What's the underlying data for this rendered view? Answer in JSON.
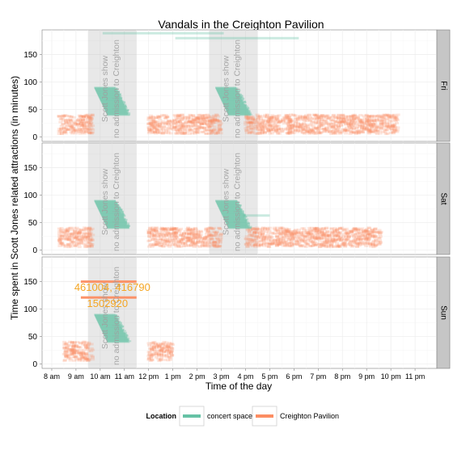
{
  "chart_data": {
    "type": "scatter",
    "title": "Vandals in the Creighton Pavilion",
    "xlabel": "Time of the day",
    "ylabel": "Time spent in Scott Jones related attractions (in minutes)",
    "x_ticks": [
      "8 am",
      "9 am",
      "10 am",
      "11 am",
      "12 pm",
      "1 pm",
      "2 pm",
      "3 pm",
      "4 pm",
      "5 pm",
      "6 pm",
      "7 pm",
      "8 pm",
      "9 pm",
      "10 pm",
      "11 pm"
    ],
    "y_ticks": [
      "0",
      "50",
      "100",
      "150"
    ],
    "ylim": [
      -8,
      195
    ],
    "xlim": [
      7.6,
      11.9
    ],
    "legend": {
      "title": "Location",
      "position": "bottom",
      "items": [
        {
          "name": "concert space",
          "color": "#66c2a5"
        },
        {
          "name": "Creighton Pavilion",
          "color": "#fc8d62"
        }
      ]
    },
    "colors": {
      "concert": "#66c2a5",
      "pavilion": "#fc8d62",
      "show_band": "#bdbdbd",
      "strip": "#c6c6c6",
      "panel_bg": "#ffffff",
      "grid": "#ececec",
      "annotation": "#f5a623"
    },
    "show_label_line1": "Scott Jones show",
    "show_label_line2": "no admission to Creighton",
    "panels": [
      {
        "day": "Fri",
        "show_windows": [
          [
            9.5,
            11.5
          ],
          [
            14.5,
            16.5
          ]
        ],
        "concert_wedges": [
          {
            "x0": 9.75,
            "x1": 11.3,
            "y": [
              40,
              90
            ]
          },
          {
            "x0": 14.75,
            "x1": 16.3,
            "y": [
              40,
              90
            ]
          }
        ],
        "pavilion_clusters": [
          {
            "x0": 8.3,
            "x1": 9.7,
            "y": [
              5,
              40
            ]
          },
          {
            "x0": 12.0,
            "x1": 15.0,
            "y": [
              5,
              40
            ]
          },
          {
            "x0": 16.0,
            "x1": 22.3,
            "y": [
              5,
              40
            ]
          }
        ],
        "concert_segments": [
          {
            "x0": 10.1,
            "x1": 15.1,
            "y": 189
          },
          {
            "x0": 13.1,
            "x1": 18.2,
            "y": 180
          }
        ],
        "pavilion_segments": [],
        "annotations": []
      },
      {
        "day": "Sat",
        "show_windows": [
          [
            9.5,
            11.5
          ],
          [
            14.5,
            16.5
          ]
        ],
        "concert_wedges": [
          {
            "x0": 9.75,
            "x1": 11.3,
            "y": [
              40,
              90
            ]
          },
          {
            "x0": 14.75,
            "x1": 16.3,
            "y": [
              40,
              90
            ]
          }
        ],
        "pavilion_clusters": [
          {
            "x0": 8.3,
            "x1": 9.7,
            "y": [
              5,
              40
            ]
          },
          {
            "x0": 12.0,
            "x1": 15.0,
            "y": [
              5,
              40
            ]
          },
          {
            "x0": 16.0,
            "x1": 21.6,
            "y": [
              5,
              40
            ]
          }
        ],
        "concert_segments": [
          {
            "x0": 15.9,
            "x1": 17.0,
            "y": 63
          }
        ],
        "pavilion_segments": [],
        "annotations": []
      },
      {
        "day": "Sun",
        "show_windows": [
          [
            9.5,
            11.5
          ]
        ],
        "concert_wedges": [
          {
            "x0": 9.75,
            "x1": 11.3,
            "y": [
              40,
              90
            ]
          }
        ],
        "pavilion_clusters": [
          {
            "x0": 8.5,
            "x1": 9.7,
            "y": [
              5,
              40
            ]
          },
          {
            "x0": 12.0,
            "x1": 13.0,
            "y": [
              5,
              40
            ]
          }
        ],
        "concert_segments": [],
        "pavilion_segments": [
          {
            "x0": 9.2,
            "x1": 11.5,
            "y": 150
          },
          {
            "x0": 9.2,
            "x1": 11.5,
            "y": 121
          }
        ],
        "annotations": [
          {
            "text": "461004, 416790",
            "x": 10.5,
            "y": 133
          },
          {
            "text": "1502920",
            "x": 10.3,
            "y": 104
          }
        ]
      }
    ]
  }
}
